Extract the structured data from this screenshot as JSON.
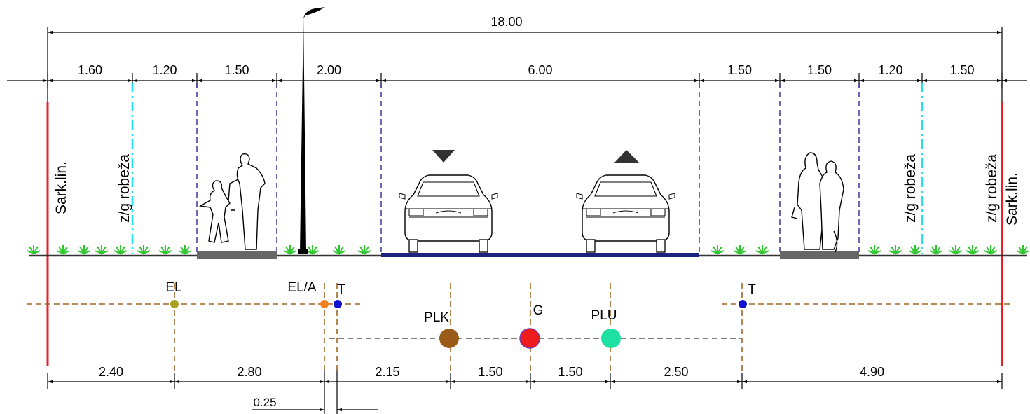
{
  "dimensions": {
    "total": "18.00",
    "top": [
      "1.60",
      "1.20",
      "1.50",
      "2.00",
      "6.00",
      "1.50",
      "1.50",
      "1.20",
      "1.50"
    ],
    "bottom": [
      "2.40",
      "2.80",
      "2.15",
      "1.50",
      "1.50",
      "2.50",
      "4.90"
    ],
    "small": "0.25"
  },
  "labels": {
    "left_boundary": "Sark.lin.",
    "right_boundary": "Sark.lin.",
    "property_line": "z/g robeža"
  },
  "utilities": {
    "el": "EL",
    "el_a": "EL/A",
    "t": "T",
    "plk": "PLK",
    "g": "G",
    "plu": "PLU"
  },
  "colors": {
    "red_line": "#e8202a",
    "cyan_line": "#22e0f0",
    "dashed_blue": "#1a1a8c",
    "grass": "#2ec82e",
    "ground": "#333333",
    "sidewalk": "#666666",
    "utility_dash": "#a0662a",
    "el": "#a8a020",
    "el_a": "#f08020",
    "t": "#1010d0",
    "plk": "#9a5a18",
    "g": "#ee1c1c",
    "plu": "#1ee0a0"
  }
}
